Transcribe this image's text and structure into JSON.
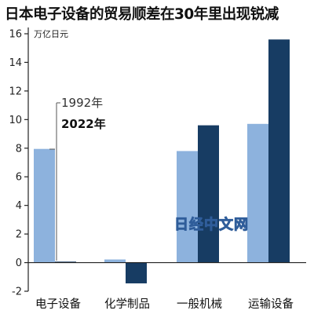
{
  "title": "日本电子设备的贸易顺差在30年里出现锐减",
  "watermark": "日经中文网",
  "chart_data": {
    "type": "bar",
    "title": "日本电子设备的贸易顺差在30年里出现锐减",
    "unit_label": "万亿日元",
    "categories": [
      "电子设备",
      "化学制品",
      "一般机械",
      "运输设备"
    ],
    "series": [
      {
        "name": "1992年",
        "values": [
          7.95,
          0.22,
          7.8,
          9.7
        ]
      },
      {
        "name": "2022年",
        "values": [
          0.07,
          -1.45,
          9.6,
          15.6
        ]
      }
    ],
    "ylim": [
      -2,
      16
    ],
    "yticks": [
      -2,
      0,
      2,
      4,
      6,
      8,
      10,
      12,
      14,
      16
    ],
    "grid": false,
    "legend_position": "inside-left, pointing to first category bars"
  },
  "colors": {
    "series_1992": "#8db2dd",
    "series_2022": "#173c63",
    "axis": "#222222",
    "watermark_outline": "#2f5d9a"
  }
}
